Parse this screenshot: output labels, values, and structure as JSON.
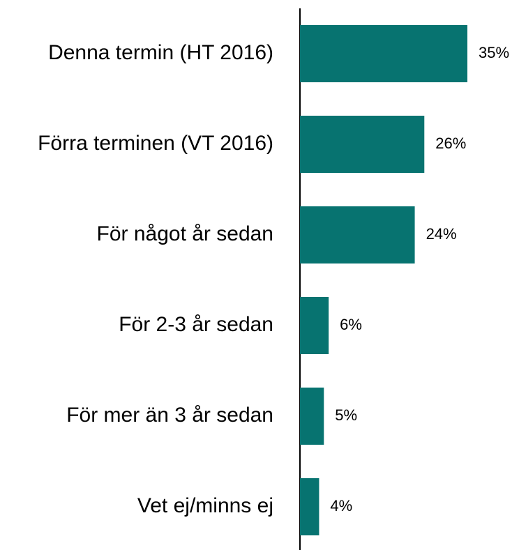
{
  "chart_data": {
    "type": "bar",
    "orientation": "horizontal",
    "categories": [
      "Denna termin (HT 2016)",
      "Förra terminen (VT 2016)",
      "För något år sedan",
      "För 2-3 år sedan",
      "För mer än 3 år sedan",
      "Vet ej/minns ej"
    ],
    "values": [
      35,
      26,
      24,
      6,
      5,
      4
    ],
    "value_labels": [
      "35%",
      "26%",
      "24%",
      "6%",
      "5%",
      "4%"
    ],
    "color": "#077370"
  }
}
